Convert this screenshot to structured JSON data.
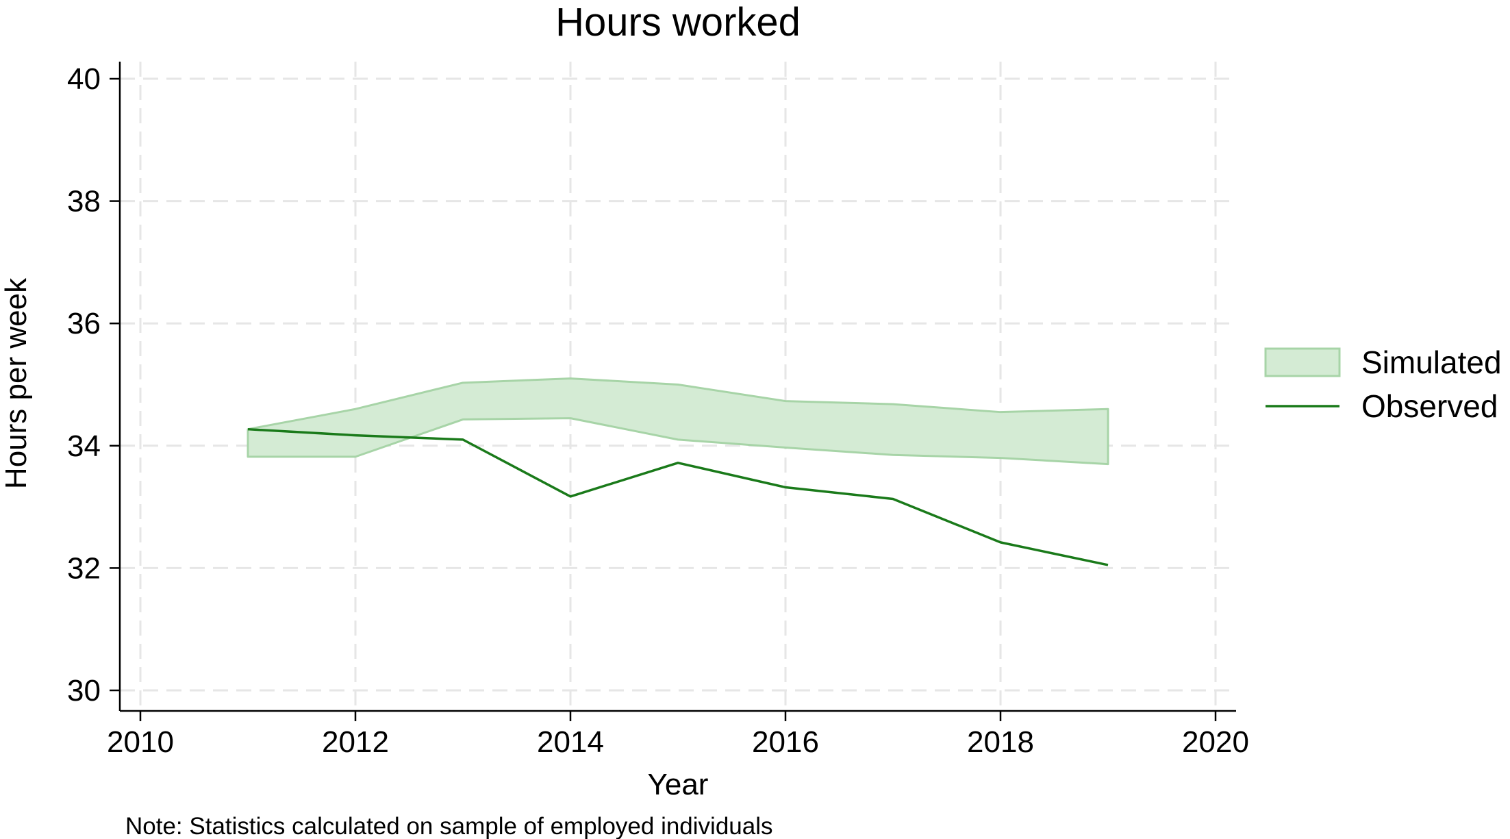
{
  "chart_data": {
    "type": "area",
    "title": "Hours worked",
    "xlabel": "Year",
    "ylabel": "Hours per week",
    "note": "Note: Statistics calculated on sample of employed individuals",
    "xlim": [
      2010,
      2020
    ],
    "ylim": [
      30,
      40
    ],
    "xticks": [
      2010,
      2012,
      2014,
      2016,
      2018,
      2020
    ],
    "yticks": [
      30,
      32,
      34,
      36,
      38,
      40
    ],
    "grid": true,
    "legend_position": "right",
    "x": [
      2011,
      2012,
      2013,
      2014,
      2015,
      2016,
      2017,
      2018,
      2019
    ],
    "series": [
      {
        "name": "Simulated",
        "kind": "band",
        "upper": [
          34.27,
          34.6,
          35.03,
          35.1,
          35.0,
          34.73,
          34.68,
          34.55,
          34.6
        ],
        "lower": [
          33.82,
          33.82,
          34.43,
          34.45,
          34.1,
          33.97,
          33.85,
          33.8,
          33.7
        ],
        "fill_color": "#d4ebd4",
        "edge_color": "#a7d4a7"
      },
      {
        "name": "Observed",
        "kind": "line",
        "values": [
          34.27,
          34.17,
          34.1,
          33.17,
          33.72,
          33.32,
          33.13,
          32.42,
          32.05
        ],
        "color": "#1a7a1a"
      }
    ]
  }
}
